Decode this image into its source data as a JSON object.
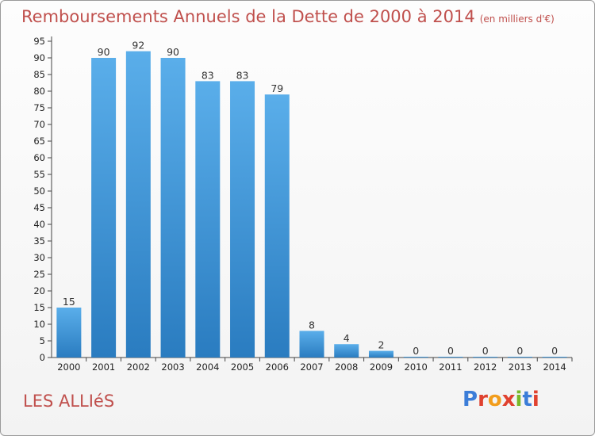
{
  "header": {
    "title": "Remboursements Annuels de la Dette de 2000 à 2014",
    "unit": "(en milliers d'€)"
  },
  "footer": {
    "commune": "LES ALLIéS",
    "logo": {
      "letters": [
        "P",
        "r",
        "o",
        "x",
        "i",
        "t",
        "i"
      ]
    }
  },
  "colors": {
    "title": "#c0504d",
    "bar_top": "#5aaeea",
    "bar_bottom": "#2a7cc0",
    "axis": "#444444",
    "logo": [
      "#3b7dd8",
      "#e0412f",
      "#f29d1c",
      "#e0412f",
      "#79b928",
      "#3b7dd8",
      "#e0412f"
    ]
  },
  "chart_data": {
    "type": "bar",
    "title": "Remboursements Annuels de la Dette de 2000 à 2014",
    "subtitle": "(en milliers d'€)",
    "categories": [
      "2000",
      "2001",
      "2002",
      "2003",
      "2004",
      "2005",
      "2006",
      "2007",
      "2008",
      "2009",
      "2010",
      "2011",
      "2012",
      "2013",
      "2014"
    ],
    "values": [
      15,
      90,
      92,
      90,
      83,
      83,
      79,
      8,
      4,
      2,
      0,
      0,
      0,
      0,
      0
    ],
    "ylim": [
      0,
      95
    ],
    "yticks": [
      0,
      5,
      10,
      15,
      20,
      25,
      30,
      35,
      40,
      45,
      50,
      55,
      60,
      65,
      70,
      75,
      80,
      85,
      90,
      95
    ],
    "grid": false,
    "legend": "none"
  }
}
